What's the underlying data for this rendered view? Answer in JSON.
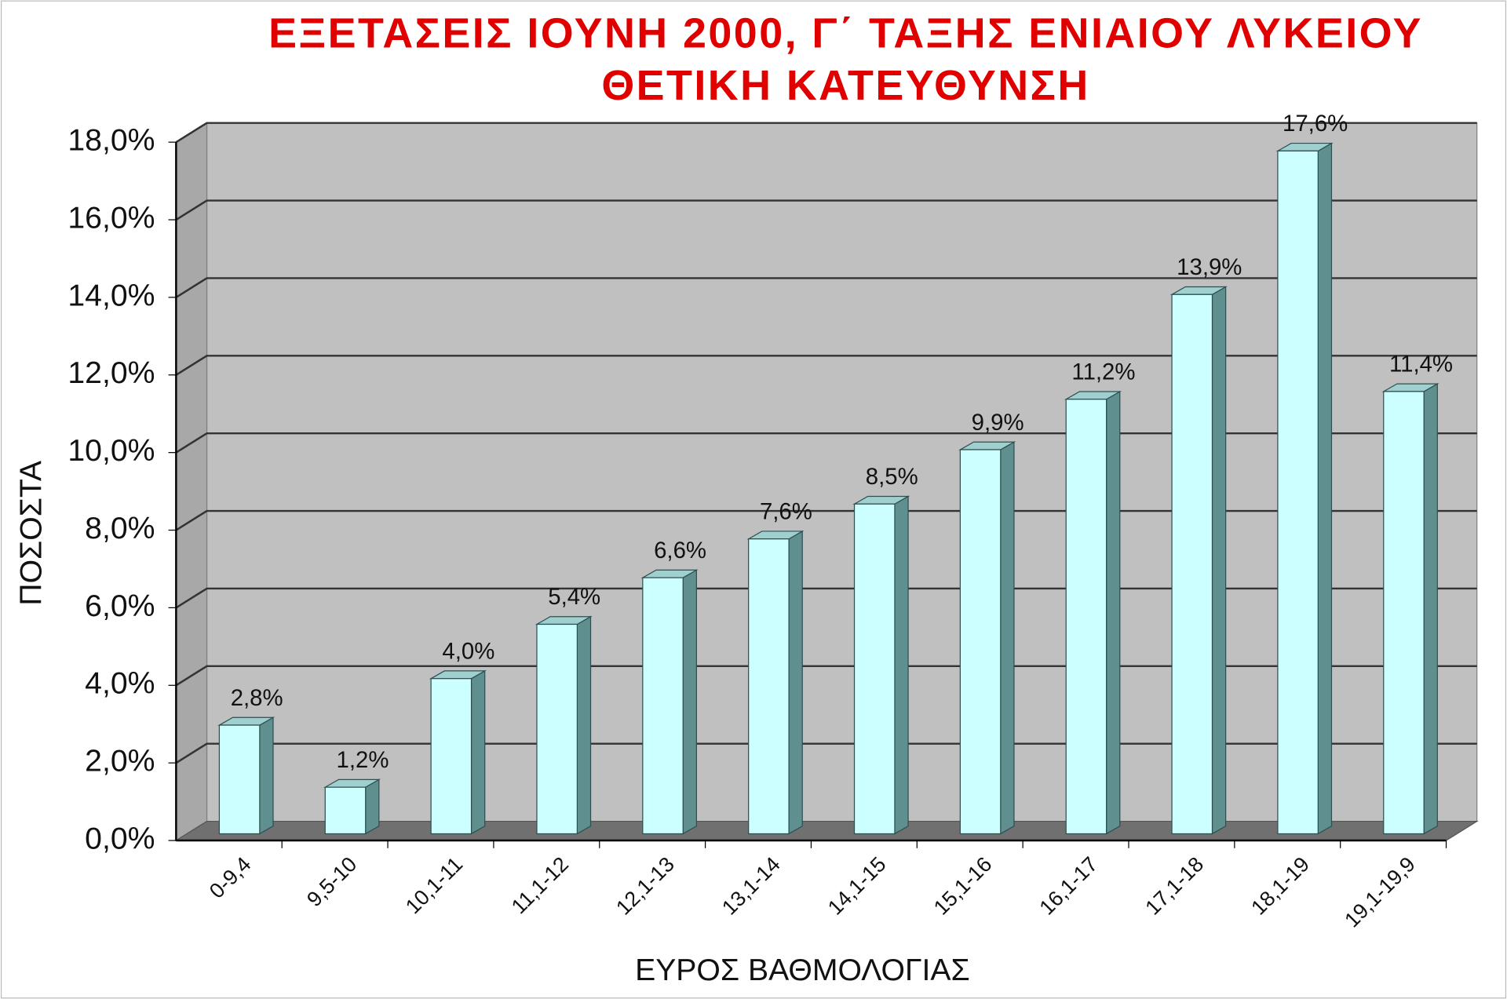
{
  "chart_data": {
    "type": "bar3d",
    "title": "ΕΞΕΤΑΣΕΙΣ ΙΟΥΝΗ 2000, Γ΄ ΤΑΞΗΣ ΕΝΙΑΙΟΥ ΛΥΚΕΙΟΥ",
    "subtitle": "ΘΕΤΙΚΗ ΚΑΤΕΥΘΥΝΣΗ",
    "x_label": "ΕΥΡΟΣ ΒΑΘΜΟΛΟΓΙΑΣ",
    "y_label": "ΠΟΣΟΣΤΑ",
    "categories": [
      "0-9,4",
      "9,5-10",
      "10,1-11",
      "11,1-12",
      "12,1-13",
      "13,1-14",
      "14,1-15",
      "15,1-16",
      "16,1-17",
      "17,1-18",
      "18,1-19",
      "19,1-19,9"
    ],
    "values": [
      2.8,
      1.2,
      4.0,
      5.4,
      6.6,
      7.6,
      8.5,
      9.9,
      11.2,
      13.9,
      17.6,
      11.4
    ],
    "value_labels": [
      "2,8%",
      "1,2%",
      "4,0%",
      "5,4%",
      "6,6%",
      "7,6%",
      "8,5%",
      "9,9%",
      "11,2%",
      "13,9%",
      "17,6%",
      "11,4%"
    ],
    "color": "#ccffff",
    "ylim": [
      0,
      18
    ],
    "yticks": [
      {
        "value": 0,
        "label": "0,0%"
      },
      {
        "value": 2,
        "label": "2,0%"
      },
      {
        "value": 4,
        "label": "4,0%"
      },
      {
        "value": 6,
        "label": "6,0%"
      },
      {
        "value": 8,
        "label": "8,0%"
      },
      {
        "value": 10,
        "label": "10,0%"
      },
      {
        "value": 12,
        "label": "12,0%"
      },
      {
        "value": 14,
        "label": "14,0%"
      },
      {
        "value": 16,
        "label": "16,0%"
      },
      {
        "value": 18,
        "label": "18,0%"
      }
    ],
    "grid": true
  }
}
